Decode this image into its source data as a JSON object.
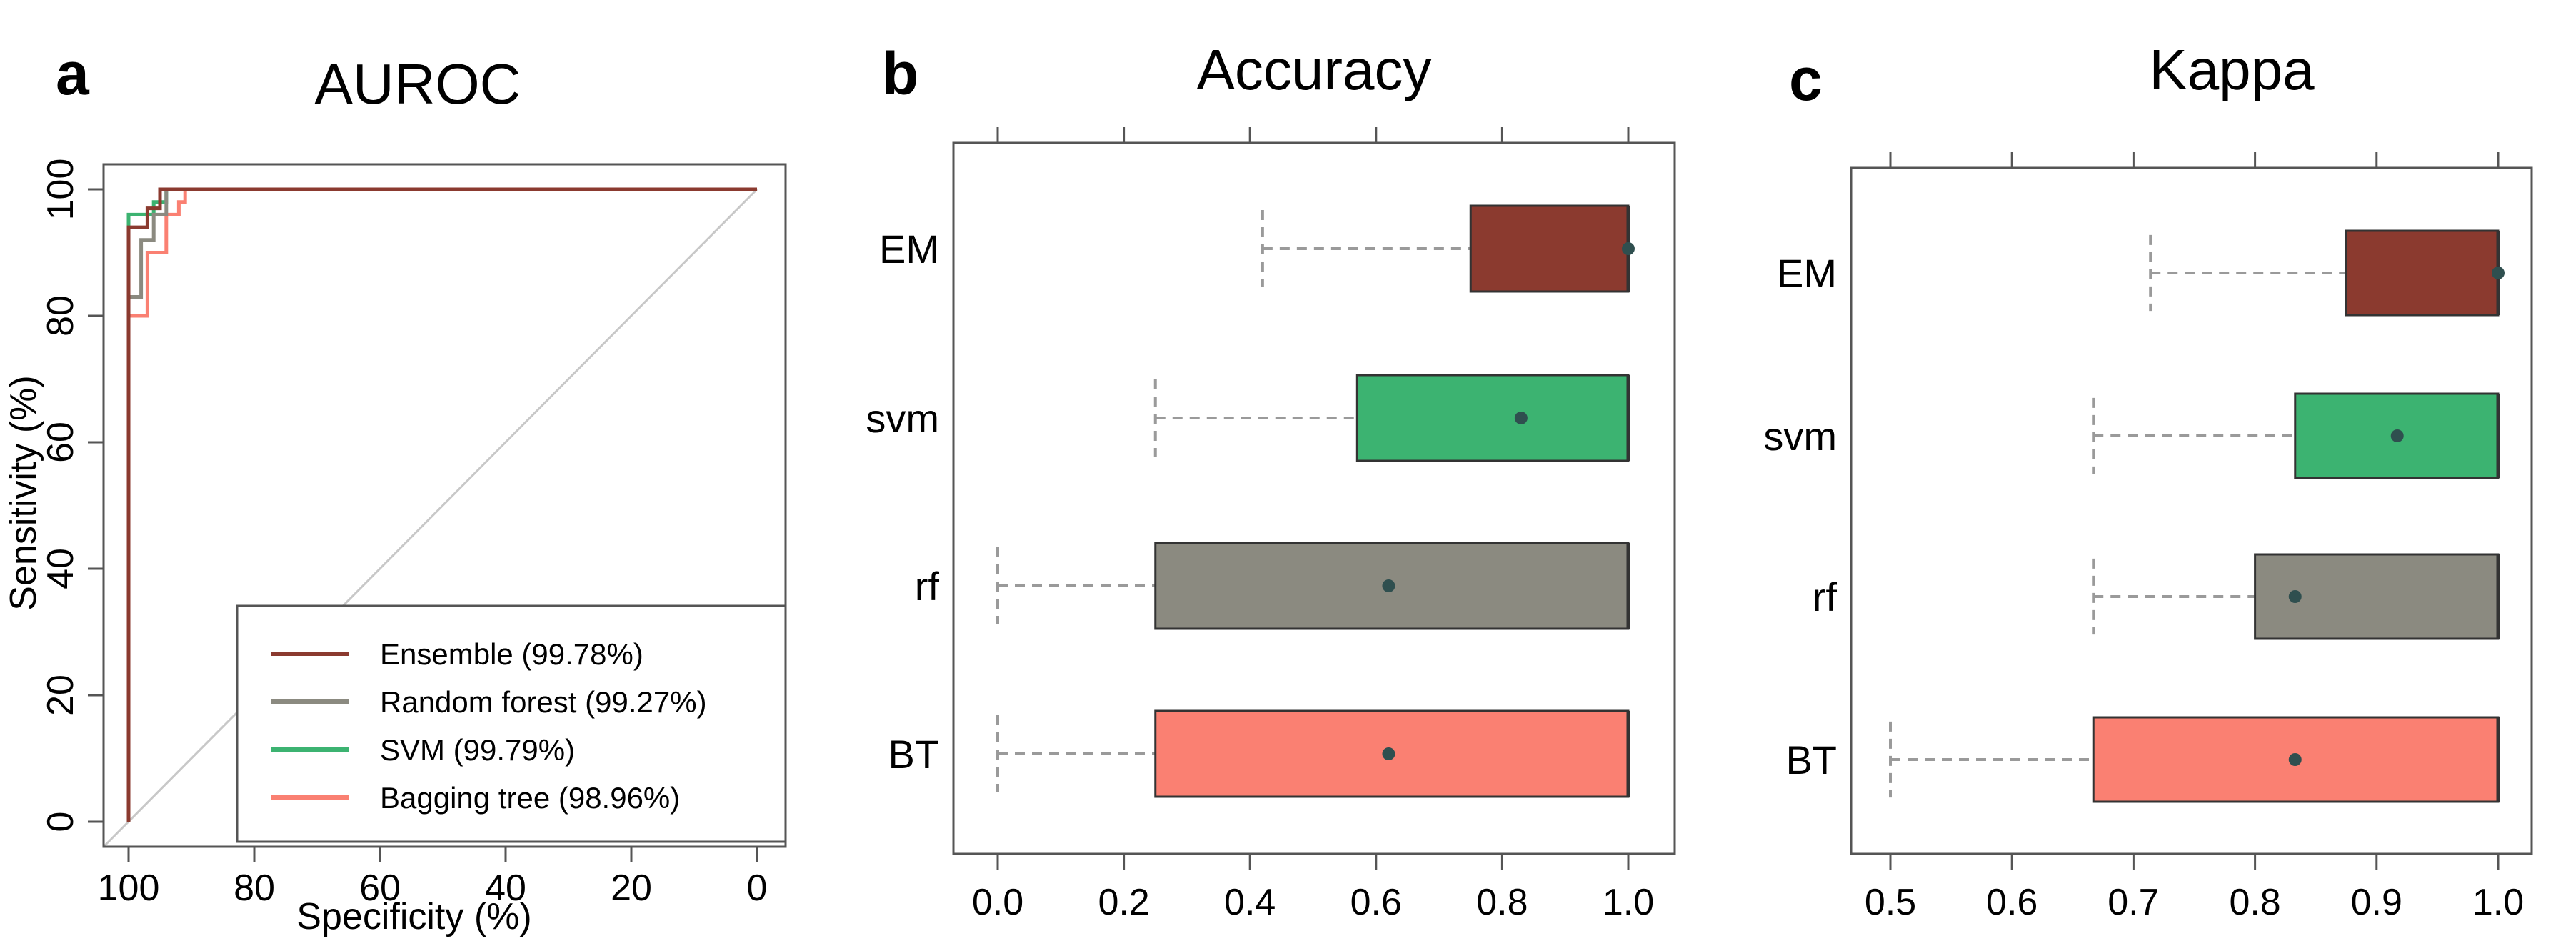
{
  "colors": {
    "em": "#8b3a2f",
    "rf": "#8b8a80",
    "svm": "#3cb371",
    "bt": "#fa8072",
    "frame": "#555555",
    "whisker": "#9a9a9a",
    "diag": "#c8c8c8",
    "mean_dot": "#2f4f4f"
  },
  "chart_data": [
    {
      "panel": "a",
      "type": "line",
      "title": "AUROC",
      "xlabel": "Specificity (%)",
      "ylabel": "Sensitivity (%)",
      "xlim": [
        100,
        0
      ],
      "ylim": [
        0,
        100
      ],
      "xticks": [
        "100",
        "80",
        "60",
        "40",
        "20",
        "0"
      ],
      "yticks": [
        "0",
        "20",
        "40",
        "60",
        "80",
        "100"
      ],
      "reference_line": "diagonal",
      "legend_position": "bottom-right",
      "series": [
        {
          "key": "ensemble",
          "name": "Ensemble (99.78%)",
          "color": "#8b3a2f",
          "points": [
            [
              100,
              0
            ],
            [
              100,
              94
            ],
            [
              97,
              94
            ],
            [
              97,
              97
            ],
            [
              95,
              97
            ],
            [
              95,
              100
            ],
            [
              0,
              100
            ]
          ]
        },
        {
          "key": "rf",
          "name": "Random forest (99.27%)",
          "color": "#8b8a80",
          "points": [
            [
              100,
              0
            ],
            [
              100,
              83
            ],
            [
              98,
              83
            ],
            [
              98,
              92
            ],
            [
              96,
              92
            ],
            [
              96,
              96
            ],
            [
              94,
              96
            ],
            [
              94,
              100
            ],
            [
              0,
              100
            ]
          ]
        },
        {
          "key": "svm",
          "name": "SVM (99.79%)",
          "color": "#3cb371",
          "points": [
            [
              100,
              0
            ],
            [
              100,
              96
            ],
            [
              96,
              96
            ],
            [
              96,
              98
            ],
            [
              94,
              98
            ],
            [
              94,
              100
            ],
            [
              0,
              100
            ]
          ]
        },
        {
          "key": "bt",
          "name": "Bagging tree (98.96%)",
          "color": "#fa8072",
          "points": [
            [
              100,
              0
            ],
            [
              100,
              80
            ],
            [
              97,
              80
            ],
            [
              97,
              90
            ],
            [
              94,
              90
            ],
            [
              94,
              96
            ],
            [
              92,
              96
            ],
            [
              92,
              98
            ],
            [
              91,
              98
            ],
            [
              91,
              100
            ],
            [
              0,
              100
            ]
          ]
        }
      ]
    },
    {
      "panel": "b",
      "type": "box",
      "title": "Accuracy",
      "xlim": [
        -0.07,
        1.07
      ],
      "xticks": [
        "0.0",
        "0.2",
        "0.4",
        "0.6",
        "0.8",
        "1.0"
      ],
      "xtick_values": [
        0,
        0.2,
        0.4,
        0.6,
        0.8,
        1.0
      ],
      "categories": [
        "EM",
        "svm",
        "rf",
        "BT"
      ],
      "boxes": [
        {
          "label": "EM",
          "color": "#8b3a2f",
          "min": 0.42,
          "q1": 0.75,
          "median": 1.0,
          "q3": 1.0,
          "max": 1.0,
          "mean": 1.0
        },
        {
          "label": "svm",
          "color": "#3cb371",
          "min": 0.25,
          "q1": 0.57,
          "median": 1.0,
          "q3": 1.0,
          "max": 1.0,
          "mean": 0.83
        },
        {
          "label": "rf",
          "color": "#8b8a80",
          "min": 0.0,
          "q1": 0.25,
          "median": 1.0,
          "q3": 1.0,
          "max": 1.0,
          "mean": 0.62
        },
        {
          "label": "BT",
          "color": "#fa8072",
          "min": 0.0,
          "q1": 0.25,
          "median": 1.0,
          "q3": 1.0,
          "max": 1.0,
          "mean": 0.62
        }
      ]
    },
    {
      "panel": "c",
      "type": "box",
      "title": "Kappa",
      "xlim": [
        0.48,
        1.02
      ],
      "xticks": [
        "0.5",
        "0.6",
        "0.7",
        "0.8",
        "0.9",
        "1.0"
      ],
      "xtick_values": [
        0.5,
        0.6,
        0.7,
        0.8,
        0.9,
        1.0
      ],
      "categories": [
        "EM",
        "svm",
        "rf",
        "BT"
      ],
      "boxes": [
        {
          "label": "EM",
          "color": "#8b3a2f",
          "min": 0.714,
          "q1": 0.875,
          "median": 1.0,
          "q3": 1.0,
          "max": 1.0,
          "mean": 1.0
        },
        {
          "label": "svm",
          "color": "#3cb371",
          "min": 0.667,
          "q1": 0.833,
          "median": 1.0,
          "q3": 1.0,
          "max": 1.0,
          "mean": 0.917
        },
        {
          "label": "rf",
          "color": "#8b8a80",
          "min": 0.667,
          "q1": 0.8,
          "median": 1.0,
          "q3": 1.0,
          "max": 1.0,
          "mean": 0.833
        },
        {
          "label": "BT",
          "color": "#fa8072",
          "min": 0.5,
          "q1": 0.667,
          "median": 1.0,
          "q3": 1.0,
          "max": 1.0,
          "mean": 0.833
        }
      ]
    }
  ]
}
